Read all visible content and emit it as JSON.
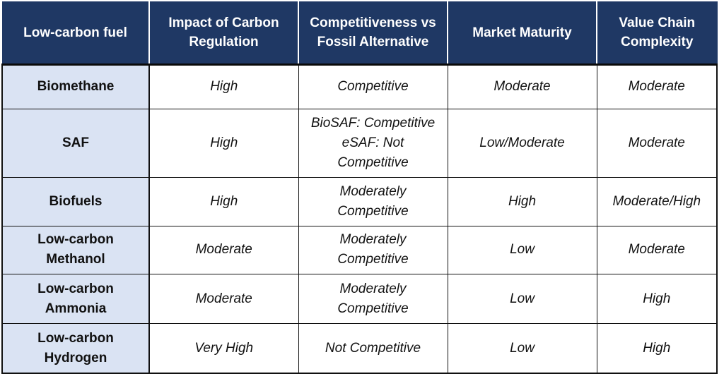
{
  "table": {
    "headers": [
      [
        "Low-carbon fuel"
      ],
      [
        "Impact of Carbon",
        "Regulation"
      ],
      [
        "Competitiveness vs",
        "Fossil Alternative"
      ],
      [
        "Market Maturity"
      ],
      [
        "Value Chain",
        "Complexity"
      ]
    ],
    "rows": [
      {
        "fuel": [
          "Biomethane"
        ],
        "impact": [
          "High"
        ],
        "competitiveness": [
          "Competitive"
        ],
        "maturity": [
          "Moderate"
        ],
        "complexity": [
          "Moderate"
        ]
      },
      {
        "fuel": [
          "SAF"
        ],
        "impact": [
          "High"
        ],
        "competitiveness": [
          "BioSAF: Competitive",
          "eSAF: Not",
          "Competitive"
        ],
        "maturity": [
          "Low/Moderate"
        ],
        "complexity": [
          "Moderate"
        ]
      },
      {
        "fuel": [
          "Biofuels"
        ],
        "impact": [
          "High"
        ],
        "competitiveness": [
          "Moderately",
          "Competitive"
        ],
        "maturity": [
          "High"
        ],
        "complexity": [
          "Moderate/High"
        ]
      },
      {
        "fuel": [
          "Low-carbon",
          "Methanol"
        ],
        "impact": [
          "Moderate"
        ],
        "competitiveness": [
          "Moderately",
          "Competitive"
        ],
        "maturity": [
          "Low"
        ],
        "complexity": [
          "Moderate"
        ]
      },
      {
        "fuel": [
          "Low-carbon",
          "Ammonia"
        ],
        "impact": [
          "Moderate"
        ],
        "competitiveness": [
          "Moderately",
          "Competitive"
        ],
        "maturity": [
          "Low"
        ],
        "complexity": [
          "High"
        ]
      },
      {
        "fuel": [
          "Low-carbon",
          "Hydrogen"
        ],
        "impact": [
          "Very High"
        ],
        "competitiveness": [
          "Not Competitive"
        ],
        "maturity": [
          "Low"
        ],
        "complexity": [
          "High"
        ]
      }
    ]
  },
  "colors": {
    "header_bg": "#1f3864",
    "header_text": "#ffffff",
    "fuel_col_bg": "#dae3f3",
    "border": "#111111"
  }
}
